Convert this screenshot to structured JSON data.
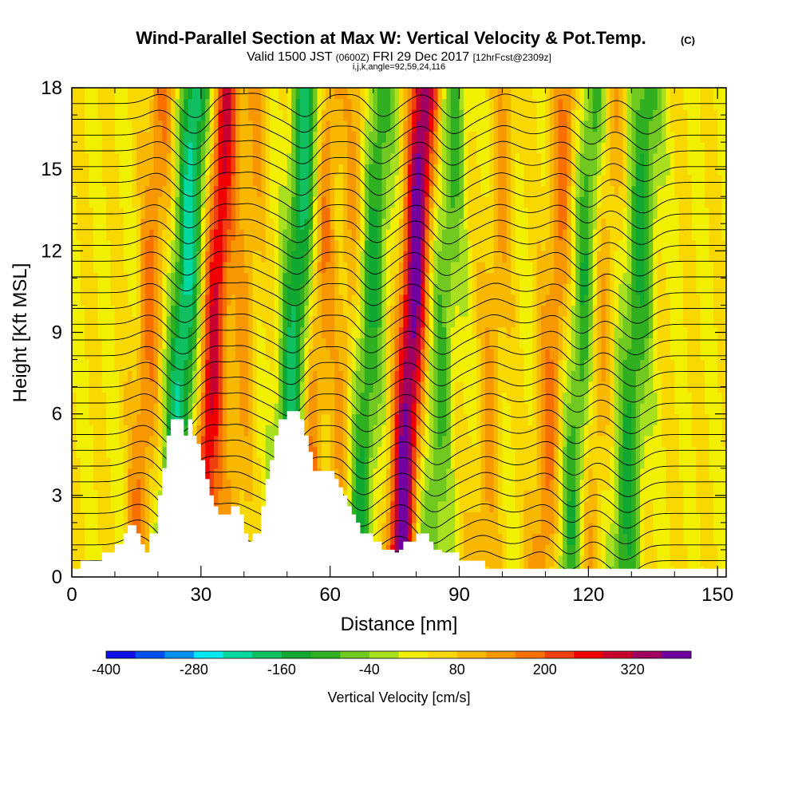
{
  "title": "Wind-Parallel Section at Max W: Vertical Velocity & Pot.Temp.",
  "title_mark": "(C)",
  "subtitle": {
    "valid": "Valid 1500 JST",
    "utc": "(0600Z)",
    "date": "FRI 29 Dec 2017",
    "fcst": "[12hrFcst@2309z]"
  },
  "subtitle2": "i,j,k,angle=92,59,24,116",
  "chart_data": {
    "type": "heatmap",
    "xlabel": "Distance [nm]",
    "ylabel": "Height [Kft MSL]",
    "xlim": [
      0,
      152
    ],
    "ylim": [
      0,
      18
    ],
    "xticks": [
      0,
      30,
      60,
      90,
      120,
      150
    ],
    "yticks": [
      0,
      3,
      6,
      9,
      12,
      15,
      18
    ],
    "colorbar": {
      "label": "Vertical Velocity [cm/s]",
      "tick_values": [
        -400,
        -280,
        -160,
        -40,
        80,
        200,
        320
      ],
      "levels": [
        -400,
        -360,
        -320,
        -280,
        -240,
        -200,
        -160,
        -120,
        -80,
        -40,
        0,
        40,
        80,
        120,
        160,
        200,
        240,
        280,
        320,
        360
      ],
      "colors": [
        "#1010e8",
        "#0050f0",
        "#0090f0",
        "#00e8f0",
        "#00d8a0",
        "#10c060",
        "#10a830",
        "#30b020",
        "#70c820",
        "#a8e020",
        "#f0f000",
        "#f8d800",
        "#f8b800",
        "#f89800",
        "#f87000",
        "#f04010",
        "#f00000",
        "#c80030",
        "#a00060",
        "#7000a0"
      ]
    },
    "terrain": [
      [
        0,
        0.3
      ],
      [
        2,
        0.3
      ],
      [
        2,
        0.6
      ],
      [
        7,
        0.6
      ],
      [
        7,
        0.9
      ],
      [
        10,
        0.9
      ],
      [
        10,
        1.2
      ],
      [
        12,
        1.2
      ],
      [
        12,
        1.6
      ],
      [
        13,
        1.6
      ],
      [
        13,
        1.9
      ],
      [
        15,
        1.9
      ],
      [
        15,
        1.6
      ],
      [
        16,
        1.6
      ],
      [
        16,
        1.2
      ],
      [
        17,
        1.2
      ],
      [
        17,
        0.9
      ],
      [
        18,
        0.9
      ],
      [
        18,
        1.6
      ],
      [
        20,
        1.6
      ],
      [
        20,
        3
      ],
      [
        21,
        3
      ],
      [
        21,
        4
      ],
      [
        22,
        4
      ],
      [
        22,
        5.2
      ],
      [
        23,
        5.2
      ],
      [
        23,
        5.8
      ],
      [
        26,
        5.8
      ],
      [
        26,
        5.2
      ],
      [
        27,
        5.2
      ],
      [
        27,
        5.8
      ],
      [
        28,
        5.8
      ],
      [
        28,
        5.2
      ],
      [
        29,
        5.2
      ],
      [
        29,
        4.9
      ],
      [
        30,
        4.9
      ],
      [
        30,
        4.3
      ],
      [
        31,
        4.3
      ],
      [
        31,
        3.6
      ],
      [
        32,
        3.6
      ],
      [
        32,
        3
      ],
      [
        33,
        3
      ],
      [
        33,
        2.6
      ],
      [
        34,
        2.6
      ],
      [
        34,
        2.3
      ],
      [
        37,
        2.3
      ],
      [
        37,
        2.6
      ],
      [
        39,
        2.6
      ],
      [
        39,
        2.3
      ],
      [
        40,
        2.3
      ],
      [
        40,
        1.6
      ],
      [
        41,
        1.6
      ],
      [
        41,
        1.3
      ],
      [
        42,
        1.3
      ],
      [
        42,
        1.6
      ],
      [
        44,
        1.6
      ],
      [
        44,
        2.6
      ],
      [
        45,
        2.6
      ],
      [
        45,
        3.6
      ],
      [
        46,
        3.6
      ],
      [
        46,
        4.3
      ],
      [
        47,
        4.3
      ],
      [
        47,
        5.2
      ],
      [
        48,
        5.2
      ],
      [
        48,
        5.8
      ],
      [
        50,
        5.8
      ],
      [
        50,
        6.1
      ],
      [
        53,
        6.1
      ],
      [
        53,
        5.8
      ],
      [
        54,
        5.8
      ],
      [
        54,
        5.2
      ],
      [
        55,
        5.2
      ],
      [
        55,
        4.6
      ],
      [
        56,
        4.6
      ],
      [
        56,
        3.9
      ],
      [
        57,
        3.9
      ],
      [
        57,
        3.9
      ],
      [
        61,
        3.9
      ],
      [
        61,
        3.6
      ],
      [
        62,
        3.6
      ],
      [
        62,
        3.3
      ],
      [
        63,
        3.3
      ],
      [
        63,
        3
      ],
      [
        64,
        3
      ],
      [
        64,
        2.6
      ],
      [
        65,
        2.6
      ],
      [
        65,
        2.3
      ],
      [
        66,
        2.3
      ],
      [
        66,
        2
      ],
      [
        67,
        2
      ],
      [
        67,
        1.6
      ],
      [
        70,
        1.6
      ],
      [
        70,
        1.3
      ],
      [
        72,
        1.3
      ],
      [
        72,
        1
      ],
      [
        75,
        1
      ],
      [
        75,
        0.9
      ],
      [
        76,
        0.9
      ],
      [
        76,
        1
      ],
      [
        77,
        1
      ],
      [
        77,
        1.3
      ],
      [
        80,
        1.3
      ],
      [
        80,
        1.6
      ],
      [
        83,
        1.6
      ],
      [
        83,
        1.3
      ],
      [
        84,
        1.3
      ],
      [
        84,
        1
      ],
      [
        86,
        1
      ],
      [
        86,
        0.9
      ],
      [
        90,
        0.9
      ],
      [
        90,
        0.6
      ],
      [
        96,
        0.6
      ],
      [
        96,
        0.3
      ],
      [
        152,
        0.3
      ]
    ],
    "updrafts_cm_s": [
      {
        "x": 18,
        "peak": 120
      },
      {
        "x": 33,
        "peak": 240
      },
      {
        "x": 40,
        "peak": 80
      },
      {
        "x": 57,
        "peak": 120
      },
      {
        "x": 64,
        "peak": 80
      },
      {
        "x": 79,
        "peak": 340
      },
      {
        "x": 98,
        "peak": 80
      },
      {
        "x": 112,
        "peak": 120
      },
      {
        "x": 122,
        "peak": 120
      }
    ],
    "downdrafts_cm_s": [
      {
        "x": 26,
        "peak": -250
      },
      {
        "x": 52,
        "peak": -220
      },
      {
        "x": 69,
        "peak": -160
      },
      {
        "x": 86,
        "peak": -120
      },
      {
        "x": 119,
        "peak": -180
      },
      {
        "x": 131,
        "peak": -160
      }
    ]
  }
}
